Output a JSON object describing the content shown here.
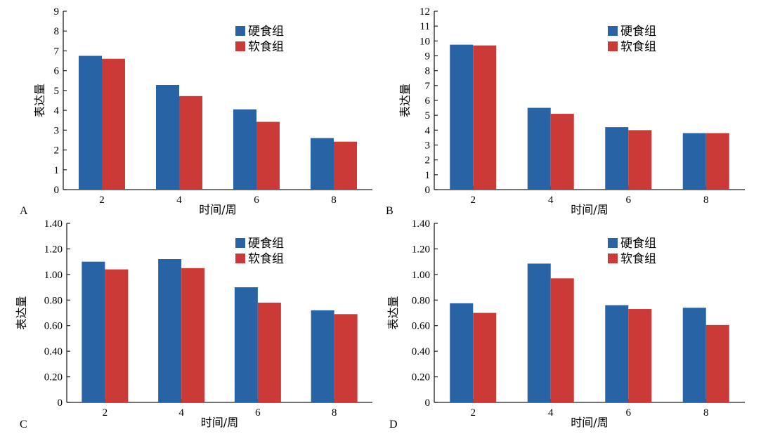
{
  "legend": [
    "硬食组",
    "软食组"
  ],
  "colors": {
    "hard": "#2863a6",
    "soft": "#cc3a37",
    "axis": "#222222"
  },
  "chart_data": [
    {
      "type": "bar",
      "panel": "A",
      "categories": [
        "2",
        "4",
        "6",
        "8"
      ],
      "series": [
        {
          "name": "硬食组",
          "values": [
            6.75,
            5.28,
            4.05,
            2.6
          ]
        },
        {
          "name": "软食组",
          "values": [
            6.6,
            4.72,
            3.42,
            2.42
          ]
        }
      ],
      "xlabel": "时间/周",
      "ylabel": "表达量",
      "ylim": [
        0,
        9
      ],
      "yticks": [
        "0",
        "1",
        "2",
        "3",
        "4",
        "5",
        "6",
        "7",
        "8",
        "9"
      ],
      "legend_position": "top-right",
      "grid": false
    },
    {
      "type": "bar",
      "panel": "B",
      "categories": [
        "2",
        "4",
        "6",
        "8"
      ],
      "series": [
        {
          "name": "硬食组",
          "values": [
            9.75,
            5.5,
            4.2,
            3.8
          ]
        },
        {
          "name": "软食组",
          "values": [
            9.7,
            5.1,
            4.0,
            3.8
          ]
        }
      ],
      "xlabel": "时间/周",
      "ylabel": "表达量",
      "ylim": [
        0,
        12
      ],
      "yticks": [
        "0",
        "1",
        "2",
        "3",
        "4",
        "5",
        "6",
        "7",
        "8",
        "9",
        "10",
        "11",
        "12"
      ],
      "legend_position": "top-right",
      "grid": false
    },
    {
      "type": "bar",
      "panel": "C",
      "categories": [
        "2",
        "4",
        "6",
        "8"
      ],
      "series": [
        {
          "name": "硬食组",
          "values": [
            1.1,
            1.12,
            0.9,
            0.72
          ]
        },
        {
          "name": "软食组",
          "values": [
            1.04,
            1.05,
            0.78,
            0.69
          ]
        }
      ],
      "xlabel": "时间/周",
      "ylabel": "表达量",
      "ylim": [
        0,
        1.4
      ],
      "yticks": [
        "0",
        "0.20",
        "0.40",
        "0.60",
        "0.80",
        "1.00",
        "1.20",
        "1.40"
      ],
      "legend_position": "top-right",
      "grid": false
    },
    {
      "type": "bar",
      "panel": "D",
      "categories": [
        "2",
        "4",
        "6",
        "8"
      ],
      "series": [
        {
          "name": "硬食组",
          "values": [
            0.775,
            1.085,
            0.76,
            0.74
          ]
        },
        {
          "name": "软食组",
          "values": [
            0.7,
            0.97,
            0.73,
            0.605
          ]
        }
      ],
      "xlabel": "时间/周",
      "ylabel": "表达量",
      "ylim": [
        0,
        1.4
      ],
      "yticks": [
        "0",
        "0.20",
        "0.40",
        "0.60",
        "0.80",
        "1.00",
        "1.20",
        "1.40"
      ],
      "legend_position": "top-right",
      "grid": false
    }
  ]
}
